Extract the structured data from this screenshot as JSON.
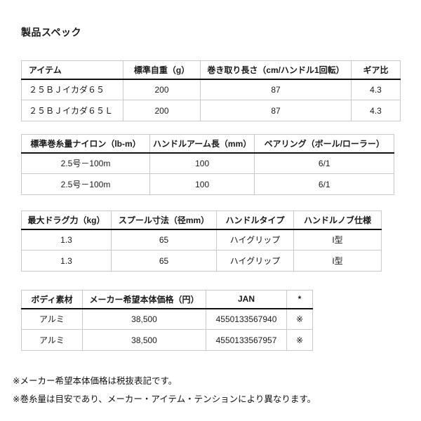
{
  "page": {
    "title": "製品スペック"
  },
  "tables": [
    {
      "name": "item-spec-table",
      "headers": [
        "アイテム",
        "標準自重（g）",
        "巻き取り長さ（cm/ハンドル1回転）",
        "ギア比"
      ],
      "rows": [
        [
          "２５ＢＪイカダ６５",
          "200",
          "87",
          "4.3"
        ],
        [
          "２５ＢＪイカダ６５Ｌ",
          "200",
          "87",
          "4.3"
        ]
      ]
    },
    {
      "name": "line-capacity-table",
      "headers": [
        "標準巻糸量ナイロン（lb-m）",
        "ハンドルアーム長（mm）",
        "ベアリング（ボール/ローラー）"
      ],
      "rows": [
        [
          "2.5号－100m",
          "100",
          "6/1"
        ],
        [
          "2.5号－100m",
          "100",
          "6/1"
        ]
      ]
    },
    {
      "name": "drag-spool-table",
      "headers": [
        "最大ドラグ力（kg）",
        "スプール寸法（径mm）",
        "ハンドルタイプ",
        "ハンドルノブ仕様"
      ],
      "rows": [
        [
          "1.3",
          "65",
          "ハイグリップ",
          "I型"
        ],
        [
          "1.3",
          "65",
          "ハイグリップ",
          "I型"
        ]
      ]
    },
    {
      "name": "body-price-table",
      "headers": [
        "ボディ素材",
        "メーカー希望本体価格（円）",
        "JAN",
        "*"
      ],
      "rows": [
        [
          "アルミ",
          "38,500",
          "4550133567940",
          "※"
        ],
        [
          "アルミ",
          "38,500",
          "4550133567957",
          "※"
        ]
      ]
    }
  ],
  "notes": [
    "※メーカー希望本体価格は税抜表記です。",
    "※巻糸量は目安であり、メーカー・アイテム・テンションにより異なります。"
  ]
}
